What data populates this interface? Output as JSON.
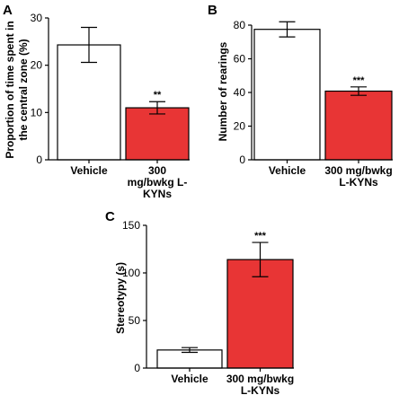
{
  "chart_data": [
    {
      "type": "bar",
      "panel": "A",
      "categories": [
        "Vehicle",
        "300 mg/bwkg L-KYNs"
      ],
      "category_label_lines": [
        [
          "Vehicle"
        ],
        [
          "300",
          "mg/bwkg L-",
          "KYNs"
        ]
      ],
      "values": [
        24.3,
        11.0
      ],
      "error": [
        3.7,
        1.3
      ],
      "significance": [
        "",
        "**"
      ],
      "colors": [
        "#ffffff",
        "#e83535"
      ],
      "ylabel_lines": [
        "Proportion of time spent in",
        "the central zone (%)"
      ],
      "ylim": [
        0,
        30
      ],
      "yticks": [
        0,
        10,
        20,
        30
      ],
      "grid": false
    },
    {
      "type": "bar",
      "panel": "B",
      "categories": [
        "Vehicle",
        "300 mg/bwkg L-KYNs"
      ],
      "category_label_lines": [
        [
          "Vehicle"
        ],
        [
          "300 mg/bwkg",
          "L-KYNs"
        ]
      ],
      "values": [
        77.5,
        40.8
      ],
      "error": [
        4.5,
        2.5
      ],
      "significance": [
        "",
        "***"
      ],
      "colors": [
        "#ffffff",
        "#e83535"
      ],
      "ylabel_lines": [
        "Number of rearings"
      ],
      "ylim": [
        0,
        80
      ],
      "yticks": [
        0,
        20,
        40,
        60,
        80
      ],
      "grid": false
    },
    {
      "type": "bar",
      "panel": "C",
      "categories": [
        "Vehicle",
        "300 mg/bwkg L-KYNs"
      ],
      "category_label_lines": [
        [
          "Vehicle"
        ],
        [
          "300 mg/bwkg",
          "L-KYNs"
        ]
      ],
      "values": [
        19,
        114
      ],
      "error": [
        2.5,
        18
      ],
      "significance": [
        "",
        "***"
      ],
      "colors": [
        "#ffffff",
        "#e83535"
      ],
      "ylabel_lines": [
        "Stereotypy (s)"
      ],
      "ylim": [
        0,
        150
      ],
      "yticks": [
        0,
        50,
        100,
        150
      ],
      "grid": false
    }
  ]
}
